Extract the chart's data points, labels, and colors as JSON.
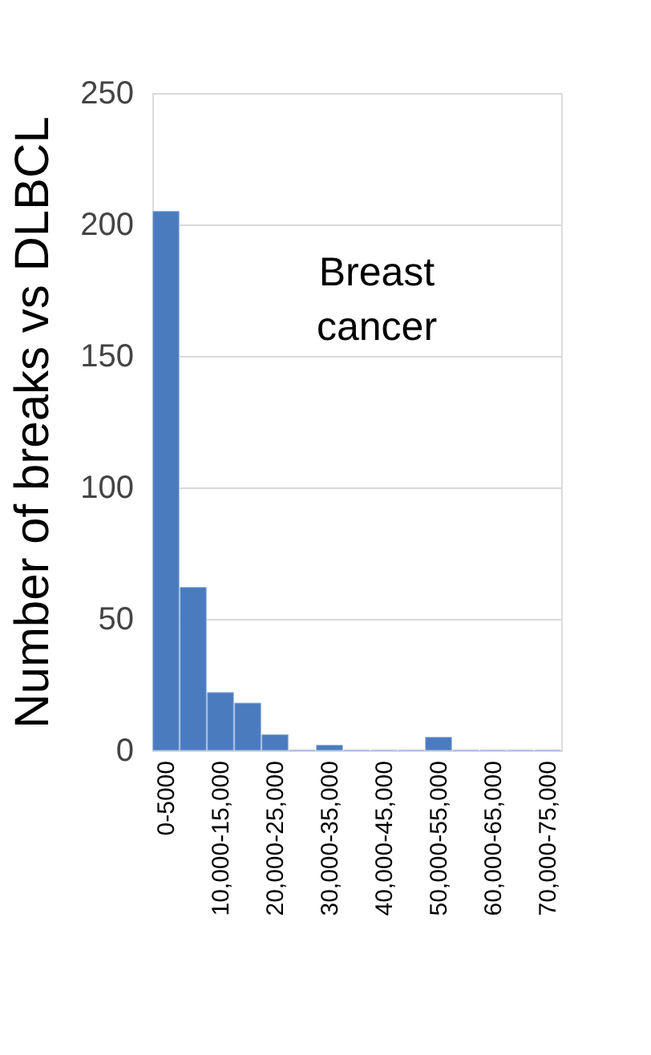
{
  "chart_data": {
    "type": "bar",
    "ylabel": "Number of breaks vs DLBCL",
    "annotations": [
      "Breast\ncancer"
    ],
    "categories": [
      "0-5000",
      null,
      "10,000-15,000",
      null,
      "20,000-25,000",
      null,
      "30,000-35,000",
      null,
      "40,000-45,000",
      null,
      "50,000-55,000",
      null,
      "60,000-65,000",
      null,
      "70,000-75,000"
    ],
    "values": [
      205,
      62,
      22,
      18,
      6,
      0,
      2,
      0,
      0,
      0,
      5,
      0,
      0,
      0,
      0
    ],
    "color": "#4a7bbf",
    "ylim": [
      0,
      250
    ],
    "yticks": [
      0,
      50,
      100,
      150,
      200,
      250
    ],
    "grid": "y"
  }
}
